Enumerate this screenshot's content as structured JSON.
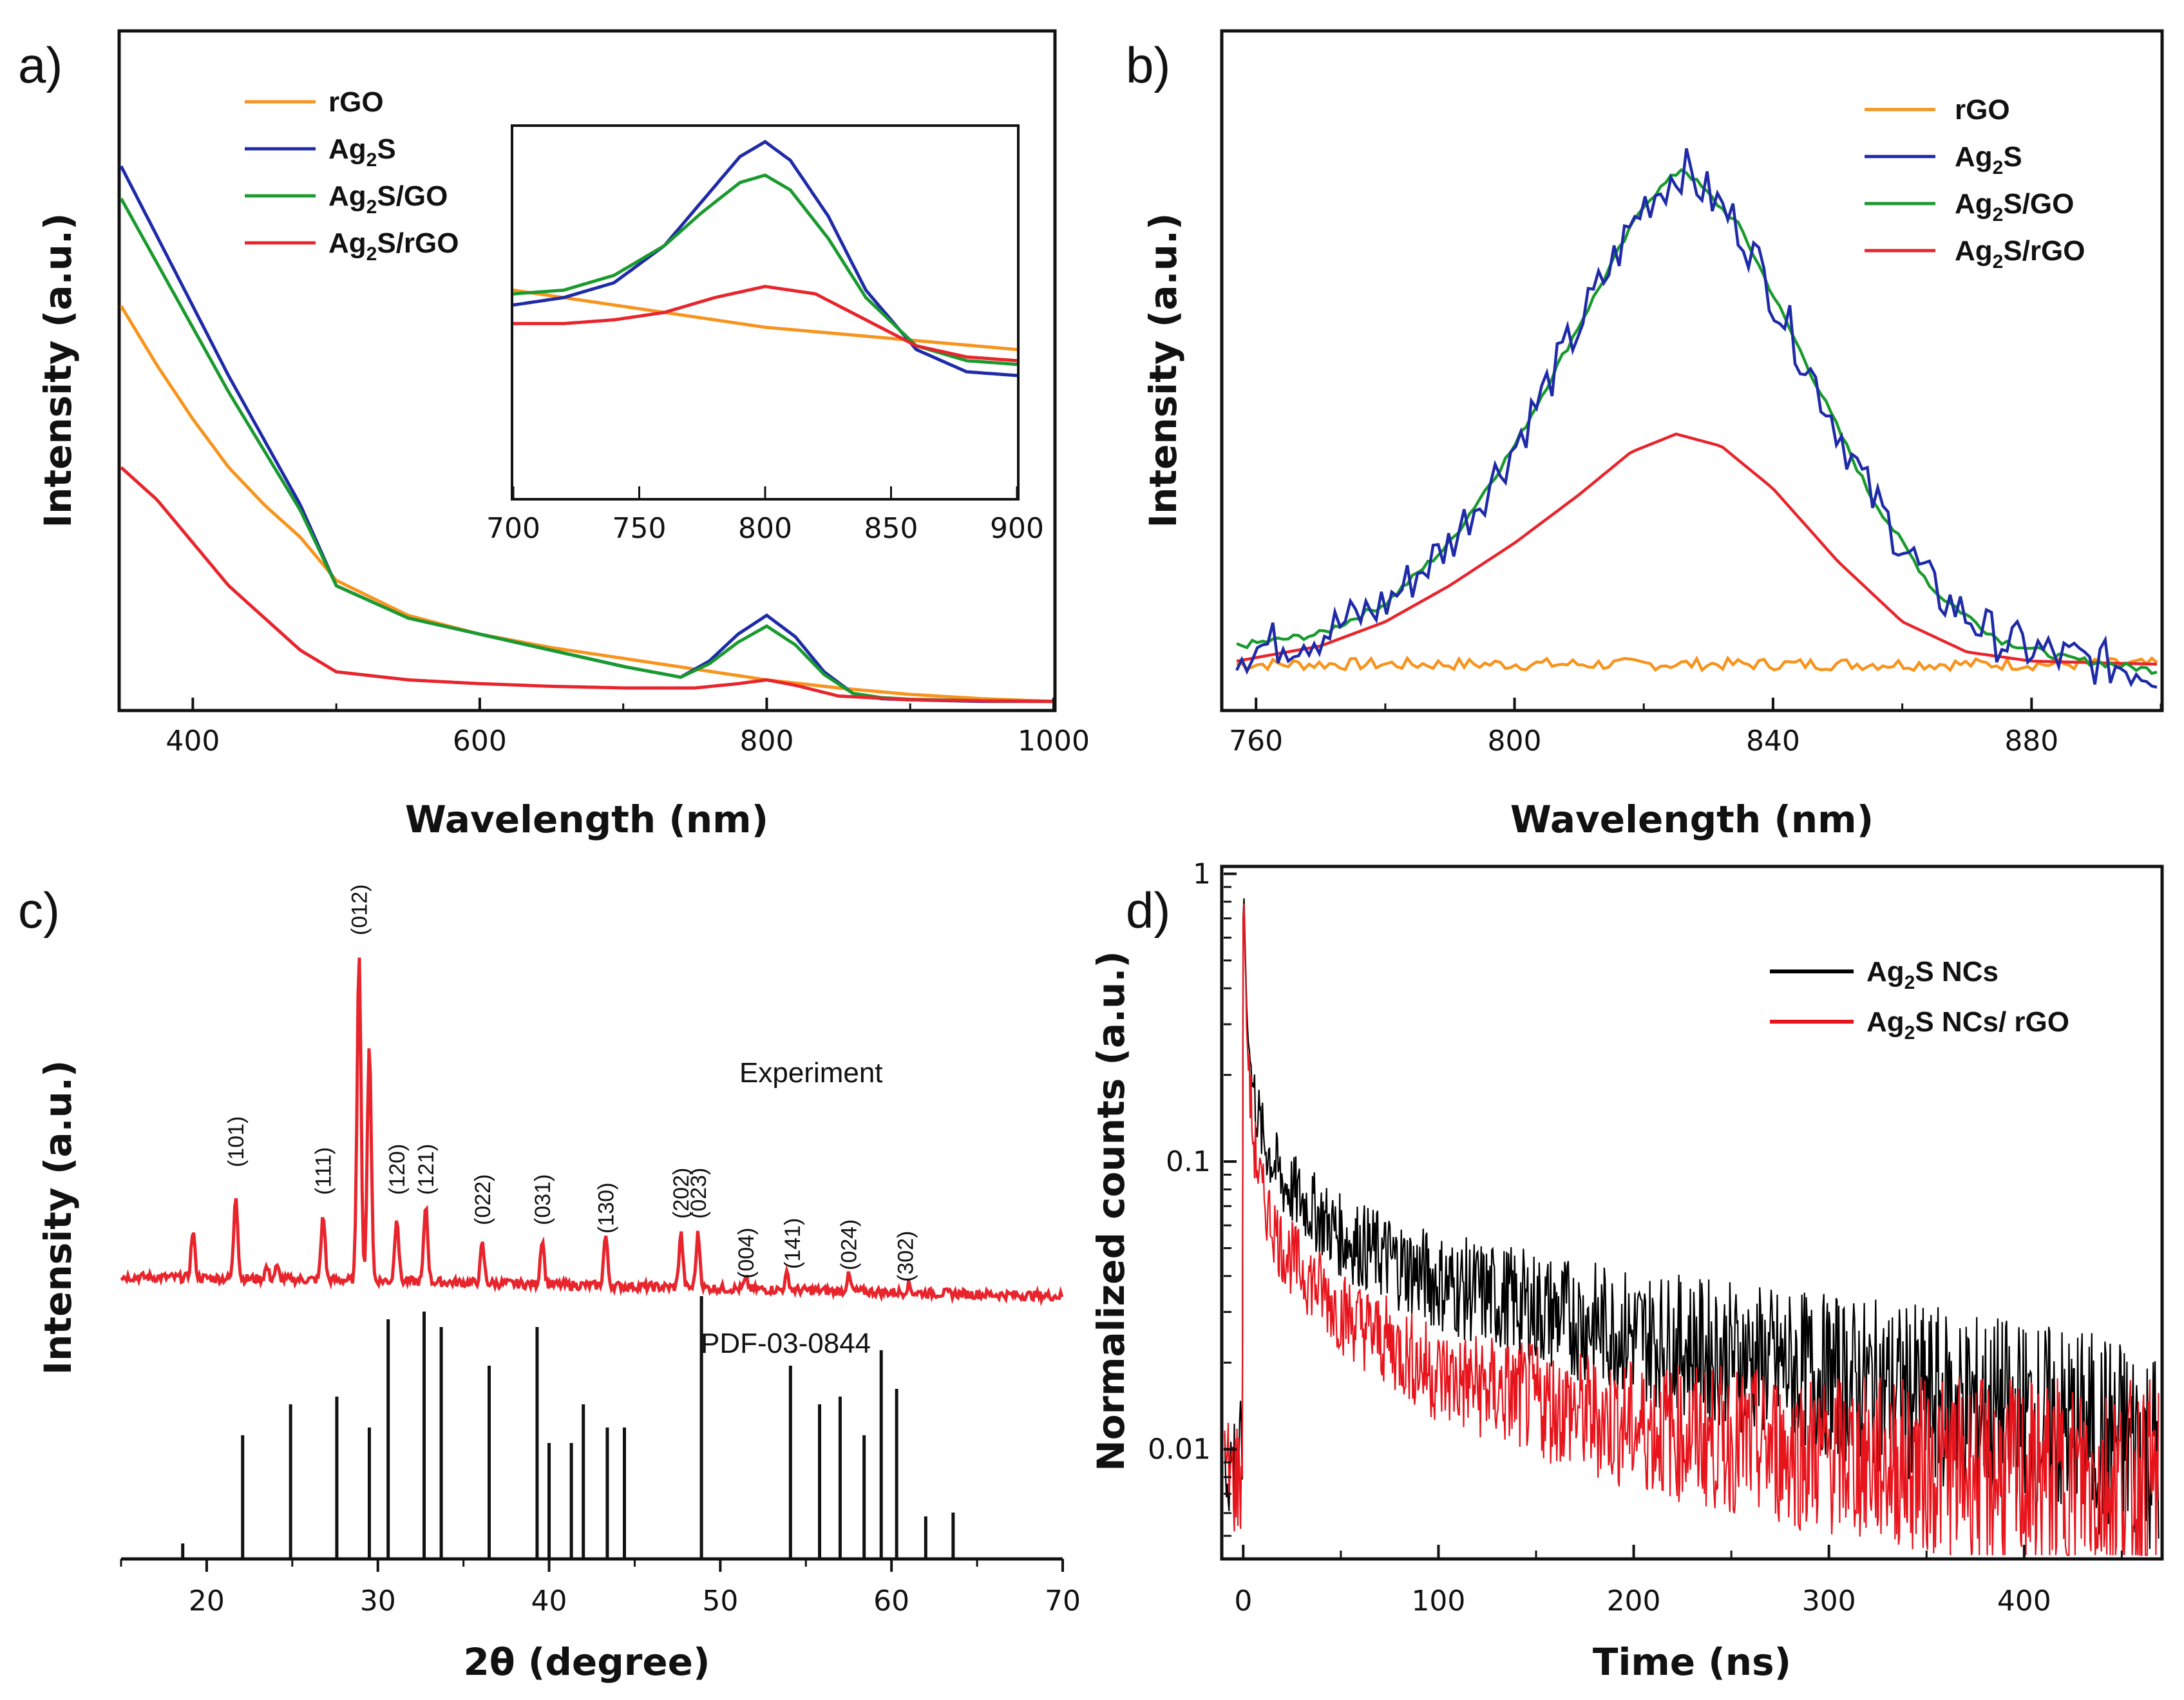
{
  "chart_data": [
    {
      "id": "a",
      "type": "line",
      "panel_label": "a)",
      "title": "",
      "xlabel": "Wavelength (nm)",
      "ylabel": "Intensity (a.u.)",
      "xlim": [
        350,
        1000
      ],
      "ylim": [
        0,
        1.0
      ],
      "xticks": [
        400,
        600,
        800,
        1000
      ],
      "legend": [
        "rGO",
        "Ag2S",
        "Ag2S/GO",
        "Ag2S/rGO"
      ],
      "legend_display": [
        {
          "base": "rGO",
          "sub": "",
          "rest": ""
        },
        {
          "base": "Ag",
          "sub": "2",
          "rest": "S"
        },
        {
          "base": "Ag",
          "sub": "2",
          "rest": "S/GO"
        },
        {
          "base": "Ag",
          "sub": "2",
          "rest": "S/rGO"
        }
      ],
      "series": [
        {
          "name": "rGO",
          "color": "#f7941d",
          "x": [
            350,
            375,
            400,
            425,
            450,
            475,
            500,
            550,
            600,
            650,
            700,
            750,
            800,
            850,
            900,
            950,
            1000
          ],
          "y": [
            0.74,
            0.63,
            0.53,
            0.44,
            0.37,
            0.31,
            0.23,
            0.165,
            0.13,
            0.105,
            0.085,
            0.065,
            0.045,
            0.03,
            0.018,
            0.01,
            0.005
          ]
        },
        {
          "name": "Ag2S",
          "color": "#1f2aa8",
          "x": [
            350,
            375,
            400,
            425,
            450,
            475,
            500,
            550,
            600,
            650,
            700,
            740,
            760,
            780,
            800,
            820,
            840,
            860,
            880,
            900,
            950,
            1000
          ],
          "y": [
            1.0,
            0.87,
            0.74,
            0.61,
            0.49,
            0.37,
            0.22,
            0.16,
            0.13,
            0.1,
            0.07,
            0.05,
            0.08,
            0.13,
            0.165,
            0.125,
            0.06,
            0.02,
            0.01,
            0.008,
            0.005,
            0.005
          ]
        },
        {
          "name": "Ag2S/GO",
          "color": "#1a9a2e",
          "x": [
            350,
            375,
            400,
            425,
            450,
            475,
            500,
            550,
            600,
            650,
            700,
            740,
            760,
            780,
            800,
            820,
            840,
            860,
            880,
            900,
            950,
            1000
          ],
          "y": [
            0.94,
            0.82,
            0.7,
            0.58,
            0.47,
            0.36,
            0.22,
            0.16,
            0.13,
            0.1,
            0.07,
            0.05,
            0.075,
            0.115,
            0.145,
            0.11,
            0.055,
            0.02,
            0.012,
            0.009,
            0.006,
            0.005
          ]
        },
        {
          "name": "Ag2S/rGO",
          "color": "#e8242c",
          "x": [
            350,
            375,
            400,
            425,
            450,
            475,
            500,
            550,
            600,
            650,
            700,
            750,
            780,
            800,
            820,
            850,
            900,
            950,
            1000
          ],
          "y": [
            0.44,
            0.38,
            0.3,
            0.22,
            0.16,
            0.1,
            0.06,
            0.045,
            0.038,
            0.033,
            0.03,
            0.03,
            0.038,
            0.045,
            0.035,
            0.015,
            0.008,
            0.006,
            0.005
          ]
        }
      ],
      "inset": {
        "xlim": [
          700,
          900
        ],
        "xticks": [
          700,
          750,
          800,
          850,
          900
        ],
        "series": [
          {
            "name": "rGO",
            "color": "#f7941d",
            "x": [
              700,
              750,
              800,
              850,
              900
            ],
            "y": [
              0.56,
              0.51,
              0.46,
              0.43,
              0.4
            ]
          },
          {
            "name": "Ag2S",
            "color": "#1f2aa8",
            "x": [
              700,
              720,
              740,
              760,
              775,
              790,
              800,
              810,
              825,
              840,
              860,
              880,
              900
            ],
            "y": [
              0.52,
              0.54,
              0.58,
              0.68,
              0.8,
              0.92,
              0.96,
              0.91,
              0.76,
              0.56,
              0.4,
              0.34,
              0.33
            ]
          },
          {
            "name": "Ag2S/GO",
            "color": "#1a9a2e",
            "x": [
              700,
              720,
              740,
              760,
              775,
              790,
              800,
              810,
              825,
              840,
              860,
              880,
              900
            ],
            "y": [
              0.55,
              0.56,
              0.6,
              0.68,
              0.77,
              0.85,
              0.87,
              0.83,
              0.7,
              0.54,
              0.41,
              0.37,
              0.36
            ]
          },
          {
            "name": "Ag2S/rGO",
            "color": "#e8242c",
            "x": [
              700,
              720,
              740,
              760,
              780,
              800,
              820,
              840,
              860,
              880,
              900
            ],
            "y": [
              0.47,
              0.47,
              0.48,
              0.5,
              0.54,
              0.57,
              0.55,
              0.48,
              0.41,
              0.38,
              0.37
            ]
          }
        ]
      }
    },
    {
      "id": "b",
      "type": "line",
      "panel_label": "b)",
      "title": "",
      "xlabel": "Wavelength (nm)",
      "ylabel": "Intensity (a.u.)",
      "xlim": [
        755,
        900
      ],
      "ylim": [
        0,
        1.0
      ],
      "xticks": [
        760,
        800,
        840,
        880
      ],
      "legend": [
        "rGO",
        "Ag2S",
        "Ag2S/GO",
        "Ag2S/rGO"
      ],
      "legend_display": [
        {
          "base": "rGO",
          "sub": "",
          "rest": ""
        },
        {
          "base": "Ag",
          "sub": "2",
          "rest": "S"
        },
        {
          "base": "Ag",
          "sub": "2",
          "rest": "S/GO"
        },
        {
          "base": "Ag",
          "sub": "2",
          "rest": "S/rGO"
        }
      ],
      "series": [
        {
          "name": "rGO",
          "color": "#f7941d",
          "noise": 0.01,
          "baseline": 0.1,
          "x": [
            757,
            900
          ],
          "y": [
            0.1,
            0.1
          ]
        },
        {
          "name": "Ag2S",
          "color": "#1f2aa8",
          "noise": 0.04,
          "x": [
            757,
            770,
            780,
            790,
            800,
            810,
            820,
            826,
            835,
            845,
            855,
            865,
            875,
            885,
            899
          ],
          "y": [
            0.12,
            0.15,
            0.2,
            0.3,
            0.46,
            0.66,
            0.86,
            0.92,
            0.82,
            0.6,
            0.38,
            0.22,
            0.14,
            0.11,
            0.09
          ]
        },
        {
          "name": "Ag2S/GO",
          "color": "#1a9a2e",
          "noise": 0.006,
          "x": [
            757,
            770,
            780,
            790,
            800,
            810,
            820,
            826,
            835,
            845,
            855,
            865,
            875,
            885,
            899
          ],
          "y": [
            0.13,
            0.15,
            0.2,
            0.3,
            0.46,
            0.66,
            0.86,
            0.92,
            0.82,
            0.6,
            0.38,
            0.22,
            0.14,
            0.11,
            0.09
          ]
        },
        {
          "name": "Ag2S/rGO",
          "color": "#e8242c",
          "noise": 0,
          "x": [
            757,
            770,
            780,
            790,
            800,
            810,
            818,
            825,
            832,
            840,
            850,
            860,
            870,
            880,
            899
          ],
          "y": [
            0.105,
            0.13,
            0.17,
            0.23,
            0.3,
            0.38,
            0.45,
            0.48,
            0.46,
            0.39,
            0.27,
            0.17,
            0.12,
            0.105,
            0.1
          ]
        }
      ]
    },
    {
      "id": "c",
      "type": "line",
      "panel_label": "c)",
      "title": "",
      "xlabel": "2θ (degree)",
      "ylabel": "Intensity (a.u.)",
      "xlim": [
        15,
        70
      ],
      "ylim": [
        0,
        1.0
      ],
      "xticks": [
        20,
        30,
        40,
        50,
        60,
        70
      ],
      "annotations": [
        "Experiment",
        "PDF-03-0844"
      ],
      "experiment": {
        "color": "#e8242c",
        "baseline": [
          [
            15,
            0.365
          ],
          [
            30,
            0.36
          ],
          [
            50,
            0.35
          ],
          [
            70,
            0.34
          ]
        ],
        "peaks": [
          {
            "x": 19.2,
            "h": 0.06
          },
          {
            "x": 21.7,
            "h": 0.11
          },
          {
            "x": 23.5,
            "h": 0.015
          },
          {
            "x": 24.1,
            "h": 0.015
          },
          {
            "x": 26.8,
            "h": 0.085
          },
          {
            "x": 28.9,
            "h": 0.43
          },
          {
            "x": 29.5,
            "h": 0.31
          },
          {
            "x": 31.1,
            "h": 0.085
          },
          {
            "x": 32.8,
            "h": 0.1
          },
          {
            "x": 36.1,
            "h": 0.05
          },
          {
            "x": 39.6,
            "h": 0.06
          },
          {
            "x": 43.3,
            "h": 0.065
          },
          {
            "x": 47.7,
            "h": 0.07
          },
          {
            "x": 48.7,
            "h": 0.07
          },
          {
            "x": 51.5,
            "h": 0.012
          },
          {
            "x": 53.9,
            "h": 0.02
          },
          {
            "x": 57.5,
            "h": 0.02
          },
          {
            "x": 61.0,
            "h": 0.01
          }
        ]
      },
      "hkl_labels": [
        {
          "x": 21.7,
          "label": "(101)"
        },
        {
          "x": 26.8,
          "label": "(111)"
        },
        {
          "x": 28.9,
          "label": "(012)"
        },
        {
          "x": 31.1,
          "label": "(120)"
        },
        {
          "x": 32.8,
          "label": "(121)"
        },
        {
          "x": 36.1,
          "label": "(022)"
        },
        {
          "x": 39.6,
          "label": "(031)"
        },
        {
          "x": 43.3,
          "label": "(130)"
        },
        {
          "x": 47.7,
          "label": "(202)"
        },
        {
          "x": 48.7,
          "label": "(023)"
        },
        {
          "x": 51.5,
          "label": "(004)"
        },
        {
          "x": 54.2,
          "label": "(141)"
        },
        {
          "x": 57.5,
          "label": "(024)"
        },
        {
          "x": 60.8,
          "label": "(302)"
        }
      ],
      "reference_sticks": [
        {
          "x": 18.6,
          "h": 0.02
        },
        {
          "x": 22.1,
          "h": 0.16
        },
        {
          "x": 24.9,
          "h": 0.2
        },
        {
          "x": 27.6,
          "h": 0.21
        },
        {
          "x": 29.5,
          "h": 0.17
        },
        {
          "x": 30.6,
          "h": 0.31
        },
        {
          "x": 32.7,
          "h": 0.32
        },
        {
          "x": 33.7,
          "h": 0.3
        },
        {
          "x": 36.5,
          "h": 0.25
        },
        {
          "x": 39.3,
          "h": 0.3
        },
        {
          "x": 40.0,
          "h": 0.15
        },
        {
          "x": 41.3,
          "h": 0.15
        },
        {
          "x": 42.0,
          "h": 0.2
        },
        {
          "x": 43.4,
          "h": 0.17
        },
        {
          "x": 44.4,
          "h": 0.17
        },
        {
          "x": 48.9,
          "h": 0.34
        },
        {
          "x": 54.1,
          "h": 0.25
        },
        {
          "x": 55.8,
          "h": 0.2
        },
        {
          "x": 57.0,
          "h": 0.21
        },
        {
          "x": 58.4,
          "h": 0.16
        },
        {
          "x": 59.4,
          "h": 0.27
        },
        {
          "x": 60.3,
          "h": 0.22
        },
        {
          "x": 62.0,
          "h": 0.055
        },
        {
          "x": 63.6,
          "h": 0.06
        }
      ]
    },
    {
      "id": "d",
      "type": "line",
      "panel_label": "d)",
      "title": "",
      "xlabel": "Time (ns)",
      "ylabel": "Normalized counts (a.u.)",
      "xlim": [
        -10,
        470
      ],
      "ylim": [
        0.0042,
        1.05
      ],
      "yscale": "log",
      "xticks": [
        0,
        100,
        200,
        300,
        400
      ],
      "yticks": [
        0.01,
        0.1,
        1
      ],
      "ytick_labels": [
        "0.01",
        "0.1",
        "1"
      ],
      "legend": [
        "Ag2S NCs",
        "Ag2S NCs/ rGO"
      ],
      "legend_display": [
        {
          "base": "Ag",
          "sub": "2",
          "rest": "S NCs"
        },
        {
          "base": "Ag",
          "sub": "2",
          "rest": "S NCs/ rGO"
        }
      ],
      "series": [
        {
          "name": "Ag2S NCs",
          "color": "#000000",
          "pre": 0.009,
          "x": [
            0,
            2,
            5,
            10,
            20,
            50,
            100,
            200,
            300,
            400,
            470
          ],
          "y": [
            1.0,
            0.3,
            0.18,
            0.12,
            0.085,
            0.055,
            0.038,
            0.025,
            0.018,
            0.013,
            0.01
          ]
        },
        {
          "name": "Ag2S NCs/ rGO",
          "color": "#e8141c",
          "pre": 0.008,
          "x": [
            0,
            2,
            5,
            10,
            20,
            50,
            100,
            200,
            300,
            400,
            470
          ],
          "y": [
            1.0,
            0.25,
            0.12,
            0.075,
            0.05,
            0.03,
            0.018,
            0.012,
            0.0095,
            0.008,
            0.0075
          ]
        }
      ]
    }
  ]
}
